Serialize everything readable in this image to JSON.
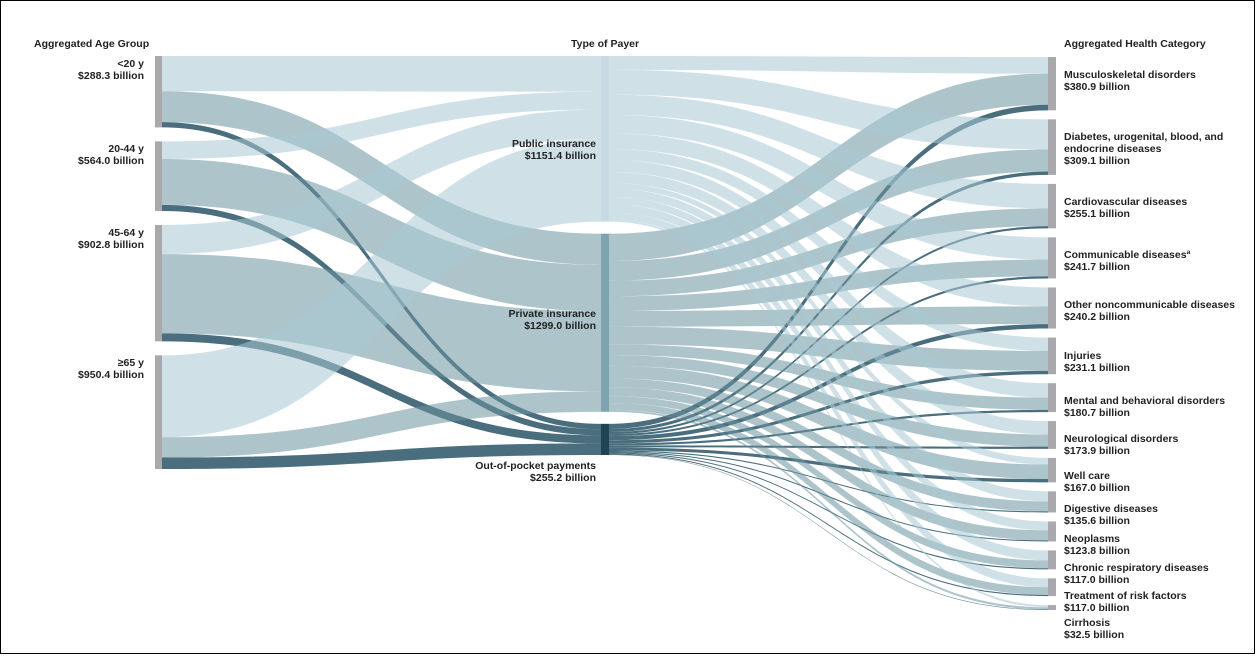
{
  "headers": {
    "left": "Aggregated Age Group",
    "middle": "Type of Payer",
    "right": "Aggregated Health Category"
  },
  "colors": {
    "node": "#a9a9ad",
    "public_node": "#c6dbe3",
    "private_node": "#7ea4b1",
    "oop_node": "#1f4553",
    "public_flow": "#a8c8d4",
    "private_flow": "#6c93a1",
    "oop_flow": "#2a5566"
  },
  "age_groups": [
    {
      "label": "<20 y",
      "value": "$288.3 billion",
      "public": 40,
      "private": 35,
      "oop": 6
    },
    {
      "label": "20-44 y",
      "value": "$564.0 billion",
      "public": 20,
      "private": 52,
      "oop": 7
    },
    {
      "label": "45-64 y",
      "value": "$902.8 billion",
      "public": 33,
      "private": 90,
      "oop": 9
    },
    {
      "label": "≥65 y",
      "value": "$950.4 billion",
      "public": 93,
      "private": 23,
      "oop": 13
    }
  ],
  "payers": [
    {
      "key": "public",
      "label": "Public insurance",
      "value": "$1151.4 billion"
    },
    {
      "key": "private",
      "label": "Private insurance",
      "value": "$1299.0 billion"
    },
    {
      "key": "oop",
      "label": "Out-of-pocket payments",
      "value": "$255.2 billion"
    }
  ],
  "categories": [
    {
      "label": "Musculoskeletal disorders",
      "value": "$380.9 billion",
      "public": 15,
      "private": 28,
      "oop": 5
    },
    {
      "label": "Diabetes, urogenital, blood, and endocrine diseases",
      "value": "$309.1 billion",
      "public": 27,
      "private": 20,
      "oop": 3
    },
    {
      "label": "Cardiovascular diseases",
      "value": "$255.1 billion",
      "public": 22,
      "private": 16,
      "oop": 2
    },
    {
      "label": "Communicable diseasesª",
      "value": "$241.7 billion",
      "public": 20,
      "private": 15,
      "oop": 2
    },
    {
      "label": "Other noncommunicable diseases",
      "value": "$240.2 billion",
      "public": 17,
      "private": 16,
      "oop": 4
    },
    {
      "label": "Injuries",
      "value": "$231.1 billion",
      "public": 12,
      "private": 18,
      "oop": 3
    },
    {
      "label": "Mental and behavioral disorders",
      "value": "$180.7 billion",
      "public": 13,
      "private": 11,
      "oop": 2
    },
    {
      "label": "Neurological disorders",
      "value": "$173.9 billion",
      "public": 12,
      "private": 11,
      "oop": 2
    },
    {
      "label": "Well care",
      "value": "$167.0 billion",
      "public": 6,
      "private": 13,
      "oop": 3
    },
    {
      "label": "Digestive diseases",
      "value": "$135.6 billion",
      "public": 9,
      "private": 9,
      "oop": 1
    },
    {
      "label": "Neoplasms",
      "value": "$123.8 billion",
      "public": 8,
      "private": 9,
      "oop": 1
    },
    {
      "label": "Chronic respiratory diseases",
      "value": "$117.0 billion",
      "public": 9,
      "private": 7,
      "oop": 1
    },
    {
      "label": "Treatment of risk factors",
      "value": "$117.0 billion",
      "public": 8,
      "private": 7,
      "oop": 1
    },
    {
      "label": "Cirrhosis",
      "value": "$32.5 billion",
      "public": 2,
      "private": 2,
      "oop": 0.4
    }
  ]
}
